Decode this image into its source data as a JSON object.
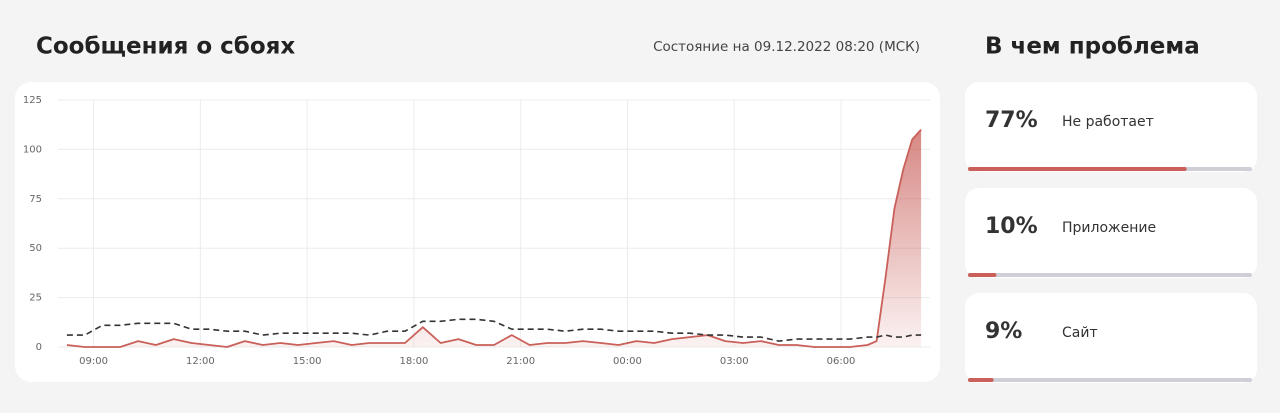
{
  "header": {
    "title": "Сообщения о сбоях",
    "status": "Состояние на 09.12.2022 08:20 (МСК)"
  },
  "chart_data": {
    "type": "line",
    "x": [
      8.25,
      8.75,
      9.25,
      9.75,
      10.25,
      10.75,
      11.25,
      11.75,
      12.25,
      12.75,
      13.25,
      13.75,
      14.25,
      14.75,
      15.25,
      15.75,
      16.25,
      16.75,
      17.25,
      17.75,
      18.25,
      18.75,
      19.25,
      19.75,
      20.25,
      20.75,
      21.25,
      21.75,
      22.25,
      22.75,
      23.25,
      23.75,
      24.25,
      24.75,
      25.25,
      25.75,
      26.25,
      26.75,
      27.25,
      27.75,
      28.25,
      28.75,
      29.25,
      29.75,
      30.25,
      30.75,
      31.0,
      31.25,
      31.5,
      31.75,
      32.0,
      32.25
    ],
    "series": [
      {
        "color": "#c9605a",
        "area": true,
        "dashed": false,
        "values": [
          1,
          0,
          0,
          0,
          3,
          1,
          4,
          2,
          1,
          0,
          3,
          1,
          2,
          1,
          2,
          3,
          1,
          2,
          2,
          2,
          10,
          2,
          4,
          1,
          1,
          6,
          1,
          2,
          2,
          3,
          2,
          1,
          3,
          2,
          4,
          5,
          6,
          3,
          2,
          3,
          1,
          1,
          0,
          0,
          0,
          1,
          3,
          35,
          70,
          90,
          105,
          110
        ]
      },
      {
        "color": "#333333",
        "area": false,
        "dashed": true,
        "values": [
          6,
          6,
          11,
          11,
          12,
          12,
          12,
          9,
          9,
          8,
          8,
          6,
          7,
          7,
          7,
          7,
          7,
          6,
          8,
          8,
          13,
          13,
          14,
          14,
          13,
          9,
          9,
          9,
          8,
          9,
          9,
          8,
          8,
          8,
          7,
          7,
          6,
          6,
          5,
          5,
          3,
          4,
          4,
          4,
          4,
          5,
          5,
          6,
          5,
          5,
          6,
          6
        ]
      }
    ],
    "xlim": [
      8,
      32.5
    ],
    "xticks": [
      {
        "value": 9,
        "label": "09:00"
      },
      {
        "value": 12,
        "label": "12:00"
      },
      {
        "value": 15,
        "label": "15:00"
      },
      {
        "value": 18,
        "label": "18:00"
      },
      {
        "value": 21,
        "label": "21:00"
      },
      {
        "value": 24,
        "label": "00:00"
      },
      {
        "value": 27,
        "label": "03:00"
      },
      {
        "value": 30,
        "label": "06:00"
      }
    ],
    "ylim": [
      0,
      125
    ],
    "yticks": [
      0,
      25,
      50,
      75,
      100,
      125
    ],
    "grid": true
  },
  "problems": {
    "title": "В чем проблема",
    "items": [
      {
        "label": "77%",
        "value": 77,
        "name": "Не работает"
      },
      {
        "label": "10%",
        "value": 10,
        "name": "Приложение"
      },
      {
        "label": "9%",
        "value": 9,
        "name": "Сайт"
      }
    ]
  }
}
